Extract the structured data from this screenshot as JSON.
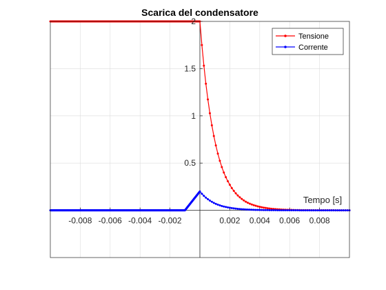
{
  "chart_data": {
    "type": "line",
    "title": "Scarica del condensatore",
    "xlabel": "Tempo [s]",
    "ylabel": "",
    "xlim": [
      -0.01,
      0.01
    ],
    "ylim": [
      -0.5,
      2.0
    ],
    "grid": true,
    "legend_position": "top-right",
    "x_ticks": [
      -0.008,
      -0.006,
      -0.004,
      -0.002,
      0.002,
      0.004,
      0.006,
      0.008
    ],
    "x_tick_labels": [
      "-0.008",
      "-0.006",
      "-0.004",
      "-0.002",
      "0.002",
      "0.004",
      "0.006",
      "0.008"
    ],
    "y_ticks": [
      0.5,
      1,
      1.5,
      2
    ],
    "y_tick_labels": [
      "0.5",
      "1",
      "1.5",
      "2"
    ],
    "series": [
      {
        "name": "Tensione",
        "color": "#ff0000",
        "marker": "point",
        "x": [
          -0.01,
          -0.009,
          -0.008,
          -0.007,
          -0.006,
          -0.005,
          -0.004,
          -0.003,
          -0.002,
          -0.001,
          0,
          0.0004,
          0.0008,
          0.0012,
          0.0016,
          0.002,
          0.0024,
          0.0028,
          0.0032,
          0.0036,
          0.004,
          0.0044,
          0.0048,
          0.0052,
          0.0056,
          0.006,
          0.0064,
          0.0068,
          0.0072,
          0.0076,
          0.008,
          0.0084,
          0.0088,
          0.0092,
          0.0096,
          0.01
        ],
        "y": [
          2,
          2,
          2,
          2,
          2,
          2,
          2,
          2,
          2,
          2,
          2,
          1.34,
          0.9,
          0.6,
          0.4,
          0.27,
          0.18,
          0.12,
          0.08,
          0.055,
          0.037,
          0.025,
          0.016,
          0.011,
          0.007,
          0.005,
          0.003,
          0.002,
          0.0015,
          0.001,
          0.0007,
          0.0004,
          0.0003,
          0.0002,
          0.0001,
          0.0001
        ]
      },
      {
        "name": "Corrente",
        "color": "#0000ff",
        "marker": "point",
        "x": [
          -0.01,
          -0.009,
          -0.008,
          -0.007,
          -0.006,
          -0.005,
          -0.004,
          -0.003,
          -0.002,
          -0.001,
          0,
          0.0004,
          0.0008,
          0.0012,
          0.0016,
          0.002,
          0.0024,
          0.0028,
          0.0032,
          0.0036,
          0.004,
          0.0044,
          0.0048,
          0.0052,
          0.0056,
          0.006,
          0.0064,
          0.0068,
          0.0072,
          0.0076,
          0.008,
          0.0084,
          0.0088,
          0.0092,
          0.0096,
          0.01
        ],
        "y": [
          0,
          0,
          0,
          0,
          0,
          0,
          0,
          0,
          0,
          0,
          0.2,
          0.134,
          0.09,
          0.06,
          0.04,
          0.027,
          0.018,
          0.012,
          0.008,
          0.0055,
          0.0037,
          0.0025,
          0.0016,
          0.0011,
          0.0007,
          0.0005,
          0.0003,
          0.0002,
          0.00015,
          0.0001,
          7e-05,
          4e-05,
          3e-05,
          2e-05,
          1e-05,
          1e-05
        ]
      }
    ]
  }
}
